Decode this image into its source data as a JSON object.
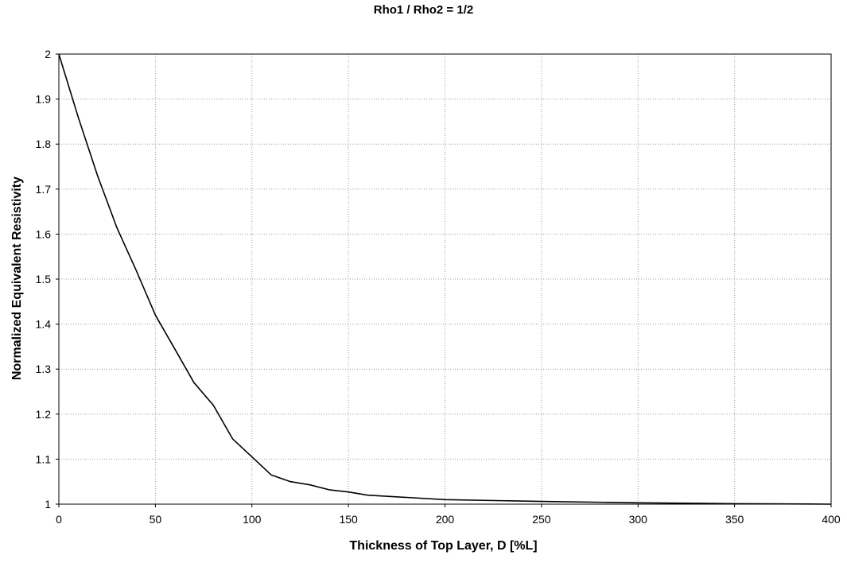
{
  "chart_data": {
    "type": "line",
    "title": "Rho1 / Rho2 = 1/2",
    "xlabel": "Thickness of Top Layer, D [%L]",
    "ylabel": "Normalized Equivalent Resistivity",
    "xlim": [
      0,
      400
    ],
    "ylim": [
      1,
      2
    ],
    "x_ticks": [
      "0",
      "50",
      "100",
      "150",
      "200",
      "250",
      "300",
      "350",
      "400"
    ],
    "y_ticks": [
      "1",
      "1.1",
      "1.2",
      "1.3",
      "1.4",
      "1.5",
      "1.6",
      "1.7",
      "1.8",
      "1.9",
      "2"
    ],
    "grid": true,
    "legend": "none",
    "line_color": "#000000",
    "series": [
      {
        "x": [
          0,
          10,
          20,
          30,
          40,
          50,
          60,
          70,
          80,
          90,
          100,
          110,
          120,
          130,
          140,
          150,
          160,
          180,
          200,
          250,
          300,
          350,
          400
        ],
        "y": [
          2.0,
          1.86,
          1.73,
          1.615,
          1.52,
          1.42,
          1.345,
          1.27,
          1.22,
          1.145,
          1.105,
          1.065,
          1.05,
          1.043,
          1.032,
          1.027,
          1.02,
          1.015,
          1.01,
          1.006,
          1.003,
          1.001,
          1.0
        ]
      }
    ]
  }
}
